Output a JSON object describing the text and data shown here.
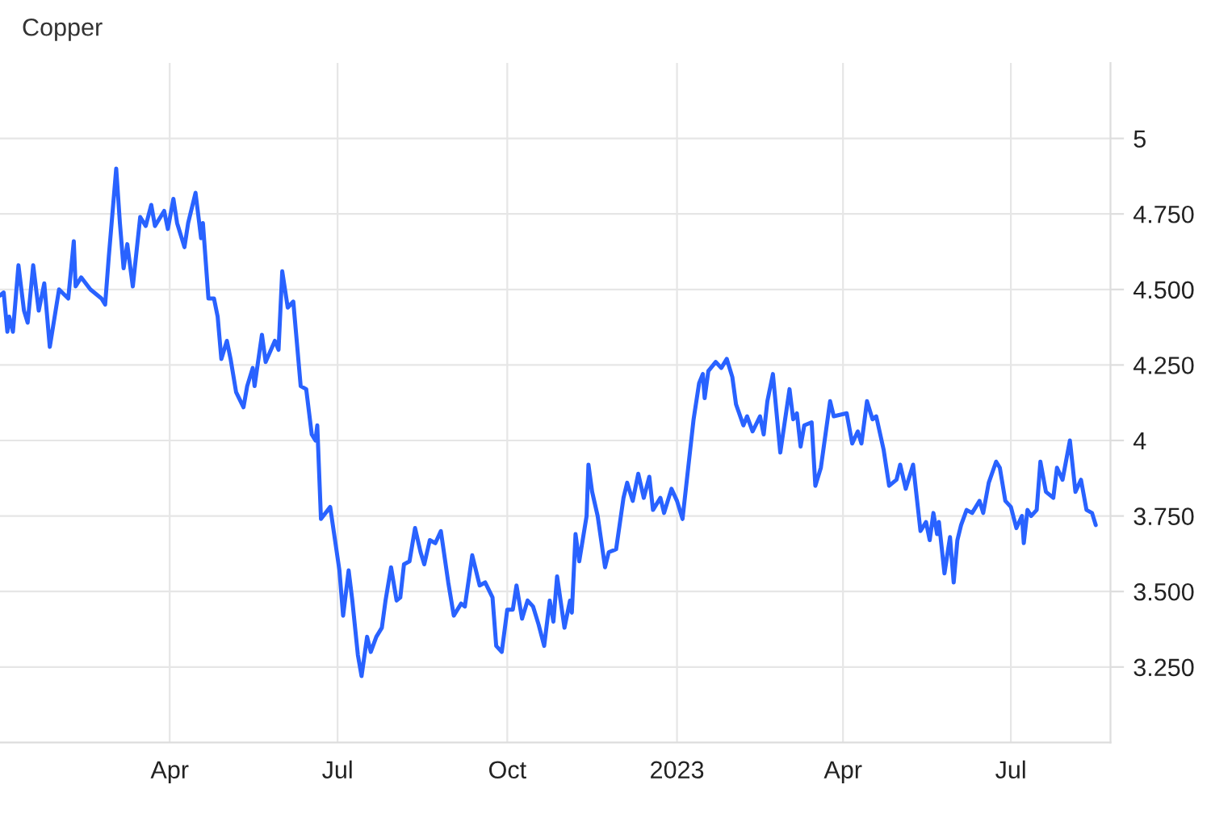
{
  "chart_data": {
    "type": "line",
    "title": "Copper",
    "x": [
      "2021-12-30",
      "2022-01-01",
      "2022-01-03",
      "2022-01-04",
      "2022-01-06",
      "2022-01-09",
      "2022-01-12",
      "2022-01-14",
      "2022-01-17",
      "2022-01-20",
      "2022-01-23",
      "2022-01-26",
      "2022-01-31",
      "2022-02-05",
      "2022-02-08",
      "2022-02-09",
      "2022-02-12",
      "2022-02-17",
      "2022-02-23",
      "2022-02-25",
      "2022-02-27",
      "2022-03-03",
      "2022-03-05",
      "2022-03-07",
      "2022-03-09",
      "2022-03-12",
      "2022-03-16",
      "2022-03-19",
      "2022-03-22",
      "2022-03-24",
      "2022-03-29",
      "2022-03-31",
      "2022-04-03",
      "2022-04-05",
      "2022-04-09",
      "2022-04-11",
      "2022-04-15",
      "2022-04-18",
      "2022-04-19",
      "2022-04-22",
      "2022-04-25",
      "2022-04-27",
      "2022-04-29",
      "2022-05-02",
      "2022-05-04",
      "2022-05-07",
      "2022-05-11",
      "2022-05-13",
      "2022-05-16",
      "2022-05-17",
      "2022-05-21",
      "2022-05-23",
      "2022-05-28",
      "2022-05-30",
      "2022-06-01",
      "2022-06-04",
      "2022-06-07",
      "2022-06-11",
      "2022-06-14",
      "2022-06-17",
      "2022-06-19",
      "2022-06-20",
      "2022-06-22",
      "2022-06-27",
      "2022-07-02",
      "2022-07-04",
      "2022-07-07",
      "2022-07-09",
      "2022-07-12",
      "2022-07-14",
      "2022-07-17",
      "2022-07-19",
      "2022-07-22",
      "2022-07-25",
      "2022-07-27",
      "2022-07-30",
      "2022-08-02",
      "2022-08-04",
      "2022-08-06",
      "2022-08-09",
      "2022-08-12",
      "2022-08-15",
      "2022-08-17",
      "2022-08-20",
      "2022-08-23",
      "2022-08-26",
      "2022-08-30",
      "2022-09-02",
      "2022-09-06",
      "2022-09-08",
      "2022-09-12",
      "2022-09-16",
      "2022-09-19",
      "2022-09-23",
      "2022-09-25",
      "2022-09-28",
      "2022-10-01",
      "2022-10-04",
      "2022-10-06",
      "2022-10-09",
      "2022-10-12",
      "2022-10-15",
      "2022-10-18",
      "2022-10-21",
      "2022-10-24",
      "2022-10-26",
      "2022-10-28",
      "2022-11-01",
      "2022-11-04",
      "2022-11-05",
      "2022-11-07",
      "2022-11-09",
      "2022-11-13",
      "2022-11-14",
      "2022-11-16",
      "2022-11-19",
      "2022-11-23",
      "2022-11-25",
      "2022-11-29",
      "2022-12-03",
      "2022-12-05",
      "2022-12-08",
      "2022-12-11",
      "2022-12-14",
      "2022-12-17",
      "2022-12-19",
      "2022-12-23",
      "2022-12-25",
      "2022-12-29",
      "2023-01-01",
      "2023-01-04",
      "2023-01-10",
      "2023-01-13",
      "2023-01-15",
      "2023-01-16",
      "2023-01-18",
      "2023-01-22",
      "2023-01-25",
      "2023-01-28",
      "2023-01-31",
      "2023-02-02",
      "2023-02-06",
      "2023-02-08",
      "2023-02-11",
      "2023-02-15",
      "2023-02-17",
      "2023-02-19",
      "2023-02-22",
      "2023-02-26",
      "2023-03-03",
      "2023-03-05",
      "2023-03-07",
      "2023-03-09",
      "2023-03-11",
      "2023-03-15",
      "2023-03-17",
      "2023-03-20",
      "2023-03-25",
      "2023-03-27",
      "2023-04-03",
      "2023-04-06",
      "2023-04-09",
      "2023-04-11",
      "2023-04-14",
      "2023-04-17",
      "2023-04-19",
      "2023-04-23",
      "2023-04-26",
      "2023-04-30",
      "2023-05-02",
      "2023-05-05",
      "2023-05-09",
      "2023-05-13",
      "2023-05-16",
      "2023-05-18",
      "2023-05-20",
      "2023-05-22",
      "2023-05-23",
      "2023-05-26",
      "2023-05-29",
      "2023-05-31",
      "2023-06-02",
      "2023-06-04",
      "2023-06-07",
      "2023-06-10",
      "2023-06-14",
      "2023-06-16",
      "2023-06-19",
      "2023-06-23",
      "2023-06-25",
      "2023-06-28",
      "2023-07-01",
      "2023-07-04",
      "2023-07-07",
      "2023-07-08",
      "2023-07-10",
      "2023-07-12",
      "2023-07-15",
      "2023-07-17",
      "2023-07-20",
      "2023-07-24",
      "2023-07-26",
      "2023-07-29",
      "2023-08-02",
      "2023-08-05",
      "2023-08-08",
      "2023-08-11",
      "2023-08-14",
      "2023-08-16"
    ],
    "series": [
      {
        "color": "#2962ff",
        "values": [
          4.48,
          4.49,
          4.36,
          4.41,
          4.36,
          4.58,
          4.43,
          4.39,
          4.58,
          4.43,
          4.52,
          4.31,
          4.5,
          4.47,
          4.66,
          4.51,
          4.54,
          4.5,
          4.47,
          4.45,
          4.61,
          4.9,
          4.72,
          4.57,
          4.65,
          4.51,
          4.74,
          4.71,
          4.78,
          4.71,
          4.76,
          4.7,
          4.8,
          4.72,
          4.64,
          4.72,
          4.82,
          4.67,
          4.72,
          4.47,
          4.47,
          4.41,
          4.27,
          4.33,
          4.27,
          4.16,
          4.11,
          4.18,
          4.24,
          4.18,
          4.35,
          4.26,
          4.33,
          4.3,
          4.56,
          4.44,
          4.46,
          4.18,
          4.17,
          4.02,
          4.0,
          4.05,
          3.74,
          3.78,
          3.57,
          3.42,
          3.57,
          3.47,
          3.29,
          3.22,
          3.35,
          3.3,
          3.35,
          3.38,
          3.47,
          3.58,
          3.47,
          3.48,
          3.59,
          3.6,
          3.71,
          3.63,
          3.59,
          3.67,
          3.66,
          3.7,
          3.53,
          3.42,
          3.46,
          3.45,
          3.62,
          3.52,
          3.53,
          3.48,
          3.32,
          3.3,
          3.44,
          3.44,
          3.52,
          3.41,
          3.47,
          3.45,
          3.39,
          3.32,
          3.47,
          3.4,
          3.55,
          3.38,
          3.47,
          3.43,
          3.69,
          3.6,
          3.75,
          3.92,
          3.83,
          3.75,
          3.58,
          3.63,
          3.64,
          3.81,
          3.86,
          3.8,
          3.89,
          3.81,
          3.88,
          3.77,
          3.81,
          3.76,
          3.84,
          3.8,
          3.74,
          4.07,
          4.19,
          4.22,
          4.14,
          4.23,
          4.26,
          4.24,
          4.27,
          4.21,
          4.12,
          4.05,
          4.08,
          4.03,
          4.08,
          4.02,
          4.13,
          4.22,
          3.96,
          4.17,
          4.07,
          4.09,
          3.98,
          4.05,
          4.06,
          3.85,
          3.91,
          4.13,
          4.08,
          4.09,
          3.99,
          4.03,
          3.99,
          4.13,
          4.07,
          4.08,
          3.97,
          3.85,
          3.87,
          3.92,
          3.84,
          3.92,
          3.7,
          3.73,
          3.67,
          3.76,
          3.69,
          3.73,
          3.56,
          3.68,
          3.53,
          3.67,
          3.72,
          3.77,
          3.76,
          3.8,
          3.76,
          3.86,
          3.93,
          3.91,
          3.8,
          3.78,
          3.71,
          3.75,
          3.66,
          3.77,
          3.75,
          3.77,
          3.93,
          3.83,
          3.81,
          3.91,
          3.87,
          4.0,
          3.83,
          3.87,
          3.77,
          3.76,
          3.72
        ]
      }
    ],
    "xlim": [
      "2021-12-30",
      "2023-08-24"
    ],
    "xticks": [
      {
        "value": "2022-04-01",
        "label": "Apr"
      },
      {
        "value": "2022-07-01",
        "label": "Jul"
      },
      {
        "value": "2022-10-01",
        "label": "Oct"
      },
      {
        "value": "2023-01-01",
        "label": "2023"
      },
      {
        "value": "2023-04-01",
        "label": "Apr"
      },
      {
        "value": "2023-07-01",
        "label": "Jul"
      }
    ],
    "ylim": [
      3.0,
      5.25
    ],
    "yticks": [
      {
        "value": 3.25,
        "label": "3.250"
      },
      {
        "value": 3.5,
        "label": "3.500"
      },
      {
        "value": 3.75,
        "label": "3.750"
      },
      4,
      {
        "value": 4.25,
        "label": "4.250"
      },
      {
        "value": 4.5,
        "label": "4.500"
      },
      {
        "value": 4.75,
        "label": "4.750"
      },
      5
    ],
    "grid": true,
    "marker": "none",
    "line_style": "solid"
  }
}
